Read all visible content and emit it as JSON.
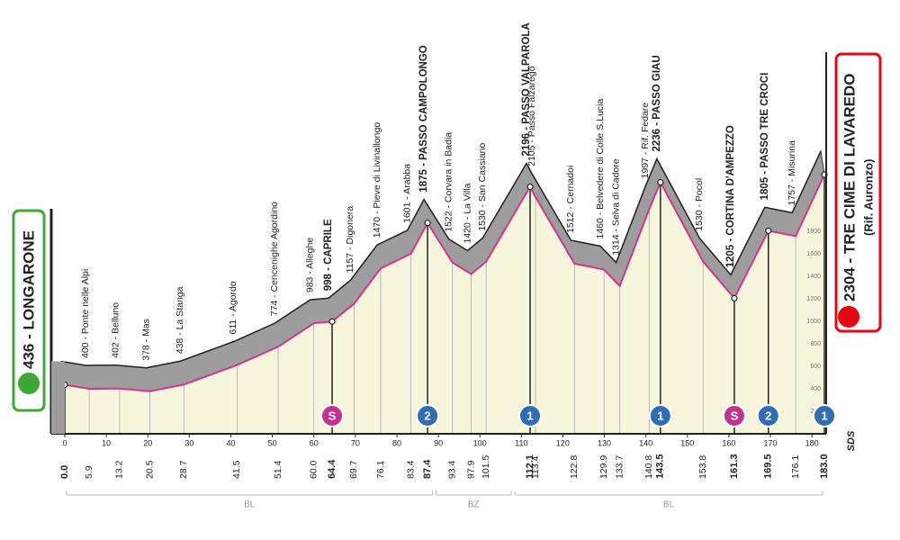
{
  "chart_data": {
    "type": "area",
    "x": [
      0,
      5.9,
      13.2,
      20.5,
      28.7,
      41.5,
      51.4,
      60,
      64.4,
      69.7,
      76.1,
      83.4,
      87.4,
      93.4,
      97.9,
      101.5,
      112.1,
      113.4,
      122.8,
      129.9,
      133.7,
      140.8,
      143.5,
      153.8,
      161.3,
      169.5,
      176.1,
      183
    ],
    "x_labels": [
      "0.0",
      "5.9",
      "13.2",
      "20.5",
      "28.7",
      "41.5",
      "51.4",
      "60.0",
      "64.4",
      "69.7",
      "76.1",
      "83.4",
      "87.4",
      "93.4",
      "97.9",
      "101.5",
      "112.1",
      "113.4",
      "122.8",
      "129.9",
      "133.7",
      "140.8",
      "143.5",
      "153.8",
      "161.3",
      "169.5",
      "176.1",
      "183.0"
    ],
    "values": [
      436,
      400,
      402,
      378,
      438,
      611,
      774,
      983,
      998,
      1157,
      1470,
      1601,
      1875,
      1522,
      1420,
      1530,
      2196,
      2105,
      1512,
      1460,
      1314,
      1997,
      2236,
      1530,
      1205,
      1805,
      1757,
      2304
    ],
    "point_labels": [
      "436 - LONGARONE",
      "400 - Ponte nelle Alpi",
      "402 - Belluno",
      "378 - Mas",
      "438 - La Stanga",
      "611 - Agordo",
      "774 - Cencenighe Agordino",
      "983 - Alleghe",
      "998 - CAPRILE",
      "1157 - Digonera",
      "1470 - Pieve di Livinallongo",
      "1601 - Arabba",
      "1875 - PASSO CAMPOLONGO",
      "1522 - Corvara in Badia",
      "1420 - La Villa",
      "1530 - San Cassiano",
      "2196 - PASSO VALPAROLA",
      "2105 - Passo Falzarego",
      "1512 - Cernadoi",
      "1460 - Belvedere di Colle S.Lucia",
      "1314 - Selva di Cadore",
      "1997 - Rif. Fedare",
      "2236 - PASSO GIAU",
      "1530 - Pocol",
      "1205 - CORTINA D'AMPEZZO",
      "1805 - PASSO TRE CROCI",
      "1757 - Misurina",
      "2304 - TRE CIME DI LAVAREDO"
    ],
    "bold": [
      true,
      false,
      false,
      false,
      false,
      false,
      false,
      false,
      true,
      false,
      false,
      false,
      true,
      false,
      false,
      false,
      true,
      false,
      false,
      false,
      false,
      false,
      true,
      false,
      true,
      true,
      false,
      true
    ],
    "finish_subtitle": "(Rif. Auronzo)",
    "line_color": "#d6338c",
    "fill_color": "#f7f5dc",
    "band_color": "#9d9d9d",
    "start_color": "#3aa935",
    "finish_color": "#e30613",
    "xlim": [
      0,
      183
    ],
    "xticks": [
      0,
      10,
      20,
      30,
      40,
      50,
      60,
      70,
      80,
      90,
      100,
      110,
      120,
      130,
      140,
      150,
      160,
      170,
      180
    ],
    "ylim": [
      0,
      2400
    ],
    "yticks": [
      200,
      400,
      600,
      800,
      1000,
      1200,
      1400,
      1600,
      1800
    ],
    "markers": [
      {
        "x": 64.4,
        "label": "S",
        "color": "#c2338f"
      },
      {
        "x": 87.4,
        "label": "2",
        "color": "#2f6db5"
      },
      {
        "x": 112.1,
        "label": "1",
        "color": "#2f6db5"
      },
      {
        "x": 143.5,
        "label": "1",
        "color": "#2f6db5"
      },
      {
        "x": 161.3,
        "label": "S",
        "color": "#c2338f"
      },
      {
        "x": 169.5,
        "label": "2",
        "color": "#2f6db5"
      },
      {
        "x": 183,
        "label": "1",
        "color": "#2f6db5"
      }
    ],
    "regions": [
      {
        "label": "BL",
        "from": 0,
        "to": 89
      },
      {
        "label": "BZ",
        "from": 89,
        "to": 108
      },
      {
        "label": "BL",
        "from": 108,
        "to": 183
      }
    ],
    "logo": "SDS"
  }
}
